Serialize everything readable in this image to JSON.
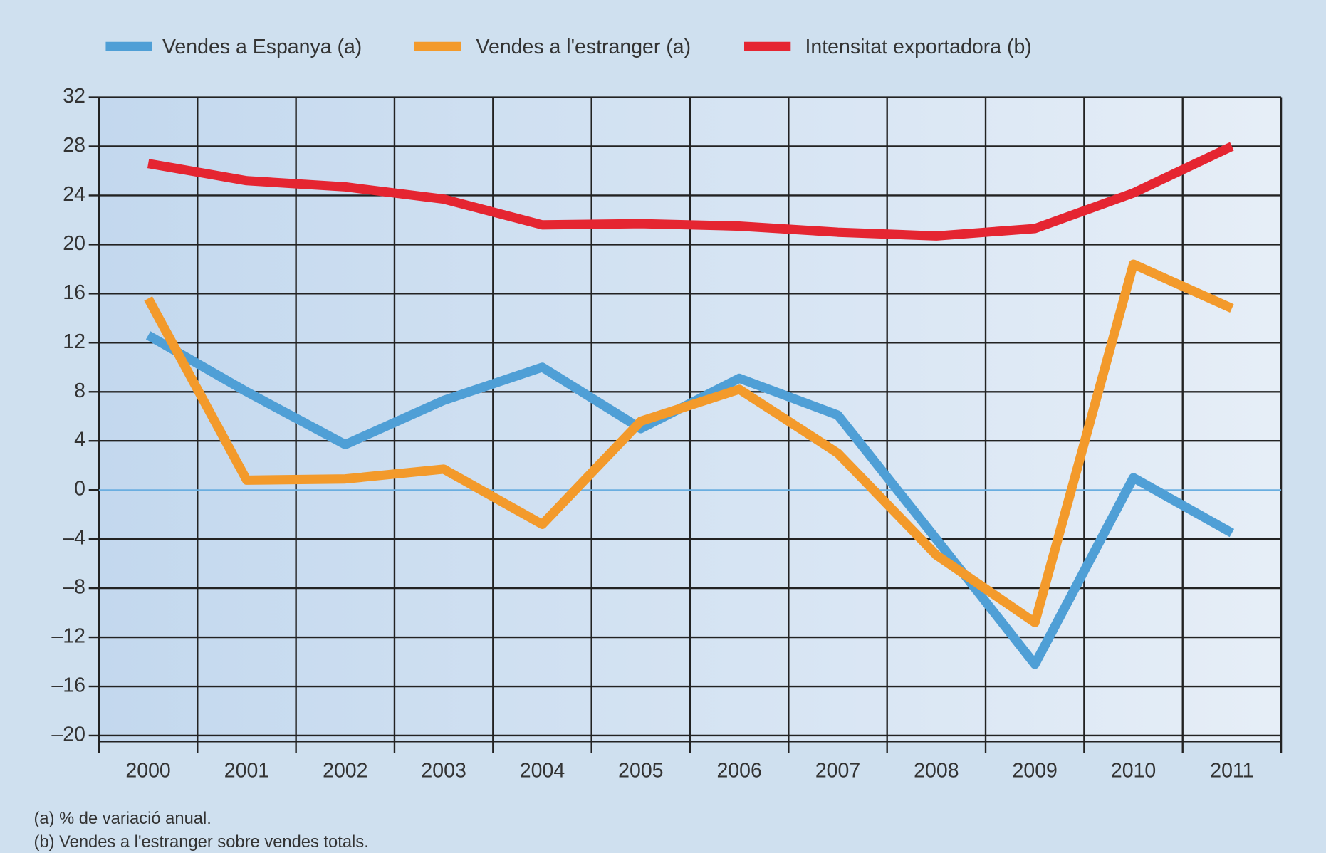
{
  "chart_data": {
    "type": "line",
    "categories": [
      "2000",
      "2001",
      "2002",
      "2003",
      "2004",
      "2005",
      "2006",
      "2007",
      "2008",
      "2009",
      "2010",
      "2011"
    ],
    "series": [
      {
        "name": "Vendes a Espanya (a)",
        "color": "#4f9fd6",
        "values": [
          12.6,
          8.0,
          3.7,
          7.3,
          10.0,
          5.0,
          9.1,
          6.1,
          -4.0,
          -14.2,
          1.0,
          -3.5
        ]
      },
      {
        "name": "Vendes a l'estranger (a)",
        "color": "#f39a2b",
        "values": [
          15.6,
          0.8,
          0.9,
          1.7,
          -2.8,
          5.6,
          8.2,
          3.0,
          -5.3,
          -10.8,
          18.4,
          14.8
        ]
      },
      {
        "name": "Intensitat exportadora (b)",
        "color": "#e52531",
        "values": [
          26.6,
          25.2,
          24.7,
          23.7,
          21.6,
          21.7,
          21.5,
          21.0,
          20.7,
          21.3,
          24.2,
          28.0
        ]
      }
    ],
    "ylim": [
      -20,
      32
    ],
    "yticks": [
      {
        "value": -20,
        "label": "–20"
      },
      {
        "value": -16,
        "label": "–16"
      },
      {
        "value": -12,
        "label": "–12"
      },
      {
        "value": -8,
        "label": "–8"
      },
      {
        "value": -4,
        "label": "–4"
      },
      0,
      4,
      8,
      12,
      16,
      20,
      24,
      28,
      32
    ],
    "grid": true,
    "legend": "top",
    "notes": [
      "(a) % de variació anual.",
      "(b) Vendes a l'estranger sobre vendes totals."
    ]
  }
}
